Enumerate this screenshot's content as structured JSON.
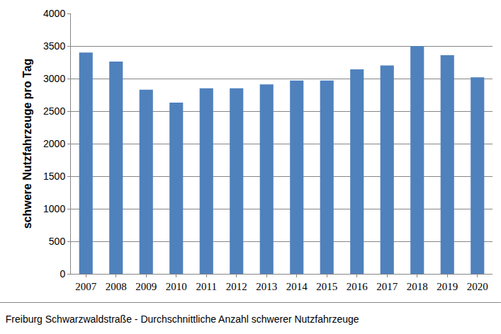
{
  "chart_data": {
    "type": "bar",
    "title": "Freiburg Schwarzwaldstraße - Durchschnittliche Anzahl schwerer Nutzfahrzeuge",
    "y_label": "schwere Nutzfahrzeuge pro Tag",
    "categories": [
      "2007",
      "2008",
      "2009",
      "2010",
      "2011",
      "2012",
      "2013",
      "2014",
      "2015",
      "2016",
      "2017",
      "2018",
      "2019",
      "2020"
    ],
    "values": [
      3400,
      3260,
      2830,
      2630,
      2850,
      2850,
      2910,
      2970,
      2970,
      3140,
      3200,
      3500,
      3360,
      3020
    ],
    "color": "#4f81bd",
    "ylim": [
      0,
      4000
    ],
    "yticks": [
      0,
      500,
      1000,
      1500,
      2000,
      2500,
      3000,
      3500,
      4000
    ],
    "grid": true
  }
}
